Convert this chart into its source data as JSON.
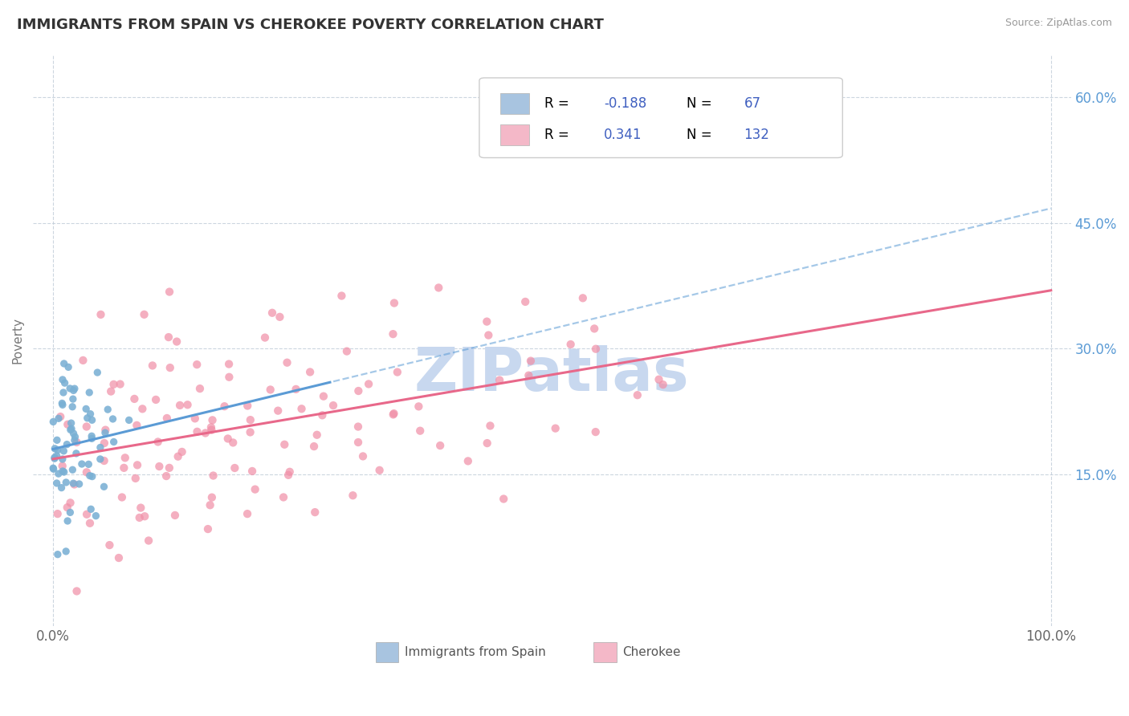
{
  "title": "IMMIGRANTS FROM SPAIN VS CHEROKEE POVERTY CORRELATION CHART",
  "source": "Source: ZipAtlas.com",
  "ylabel": "Poverty",
  "xlim": [
    -0.02,
    1.02
  ],
  "ylim": [
    -0.03,
    0.65
  ],
  "y_ticks": [
    0.15,
    0.3,
    0.45,
    0.6
  ],
  "y_tick_labels": [
    "15.0%",
    "30.0%",
    "45.0%",
    "60.0%"
  ],
  "x_tick_labels": [
    "0.0%",
    "100.0%"
  ],
  "series1_color": "#a8c4e0",
  "series1_scatter": "#7ab0d4",
  "series1_line": "#5b9bd5",
  "series1_name": "Immigrants from Spain",
  "series1_R": "-0.188",
  "series1_N": "67",
  "series2_color": "#f4b8c8",
  "series2_scatter": "#f090a8",
  "series2_line": "#e8688a",
  "series2_name": "Cherokee",
  "series2_R": "0.341",
  "series2_N": "132",
  "watermark": "ZIPatlas",
  "watermark_color": "#c8d8ef",
  "grid_color": "#c0ccd8",
  "title_fontsize": 13,
  "R_N_color": "#4060c0",
  "bg_color": "#ffffff"
}
